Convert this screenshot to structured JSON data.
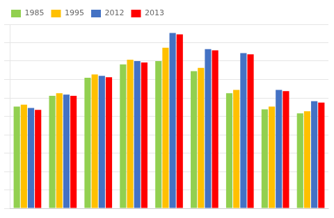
{
  "chart_data": {
    "type": "bar",
    "categories": [
      null,
      null,
      null,
      null,
      null,
      null,
      null,
      null,
      null
    ],
    "series": [
      {
        "name": "1985",
        "color": "#92D050",
        "values": [
          1.52,
          1.68,
          1.95,
          2.15,
          2.2,
          2.05,
          1.72,
          1.48,
          1.42
        ]
      },
      {
        "name": "1995",
        "color": "#FFC000",
        "values": [
          1.55,
          1.72,
          2.0,
          2.22,
          2.4,
          2.1,
          1.77,
          1.52,
          1.45
        ]
      },
      {
        "name": "2012",
        "color": "#4472C4",
        "values": [
          1.5,
          1.7,
          1.98,
          2.2,
          2.62,
          2.38,
          2.32,
          1.77,
          1.6
        ]
      },
      {
        "name": "2013",
        "color": "#FF0000",
        "values": [
          1.47,
          1.68,
          1.96,
          2.18,
          2.6,
          2.36,
          2.3,
          1.75,
          1.58
        ]
      }
    ],
    "ylim": [
      0,
      2.75
    ],
    "yticks": [
      0,
      0.275,
      0.55,
      0.825,
      1.1,
      1.375,
      1.65,
      1.925,
      2.2,
      2.475,
      2.75
    ],
    "grid": true,
    "legend": "upper left",
    "tick_labels": false
  }
}
